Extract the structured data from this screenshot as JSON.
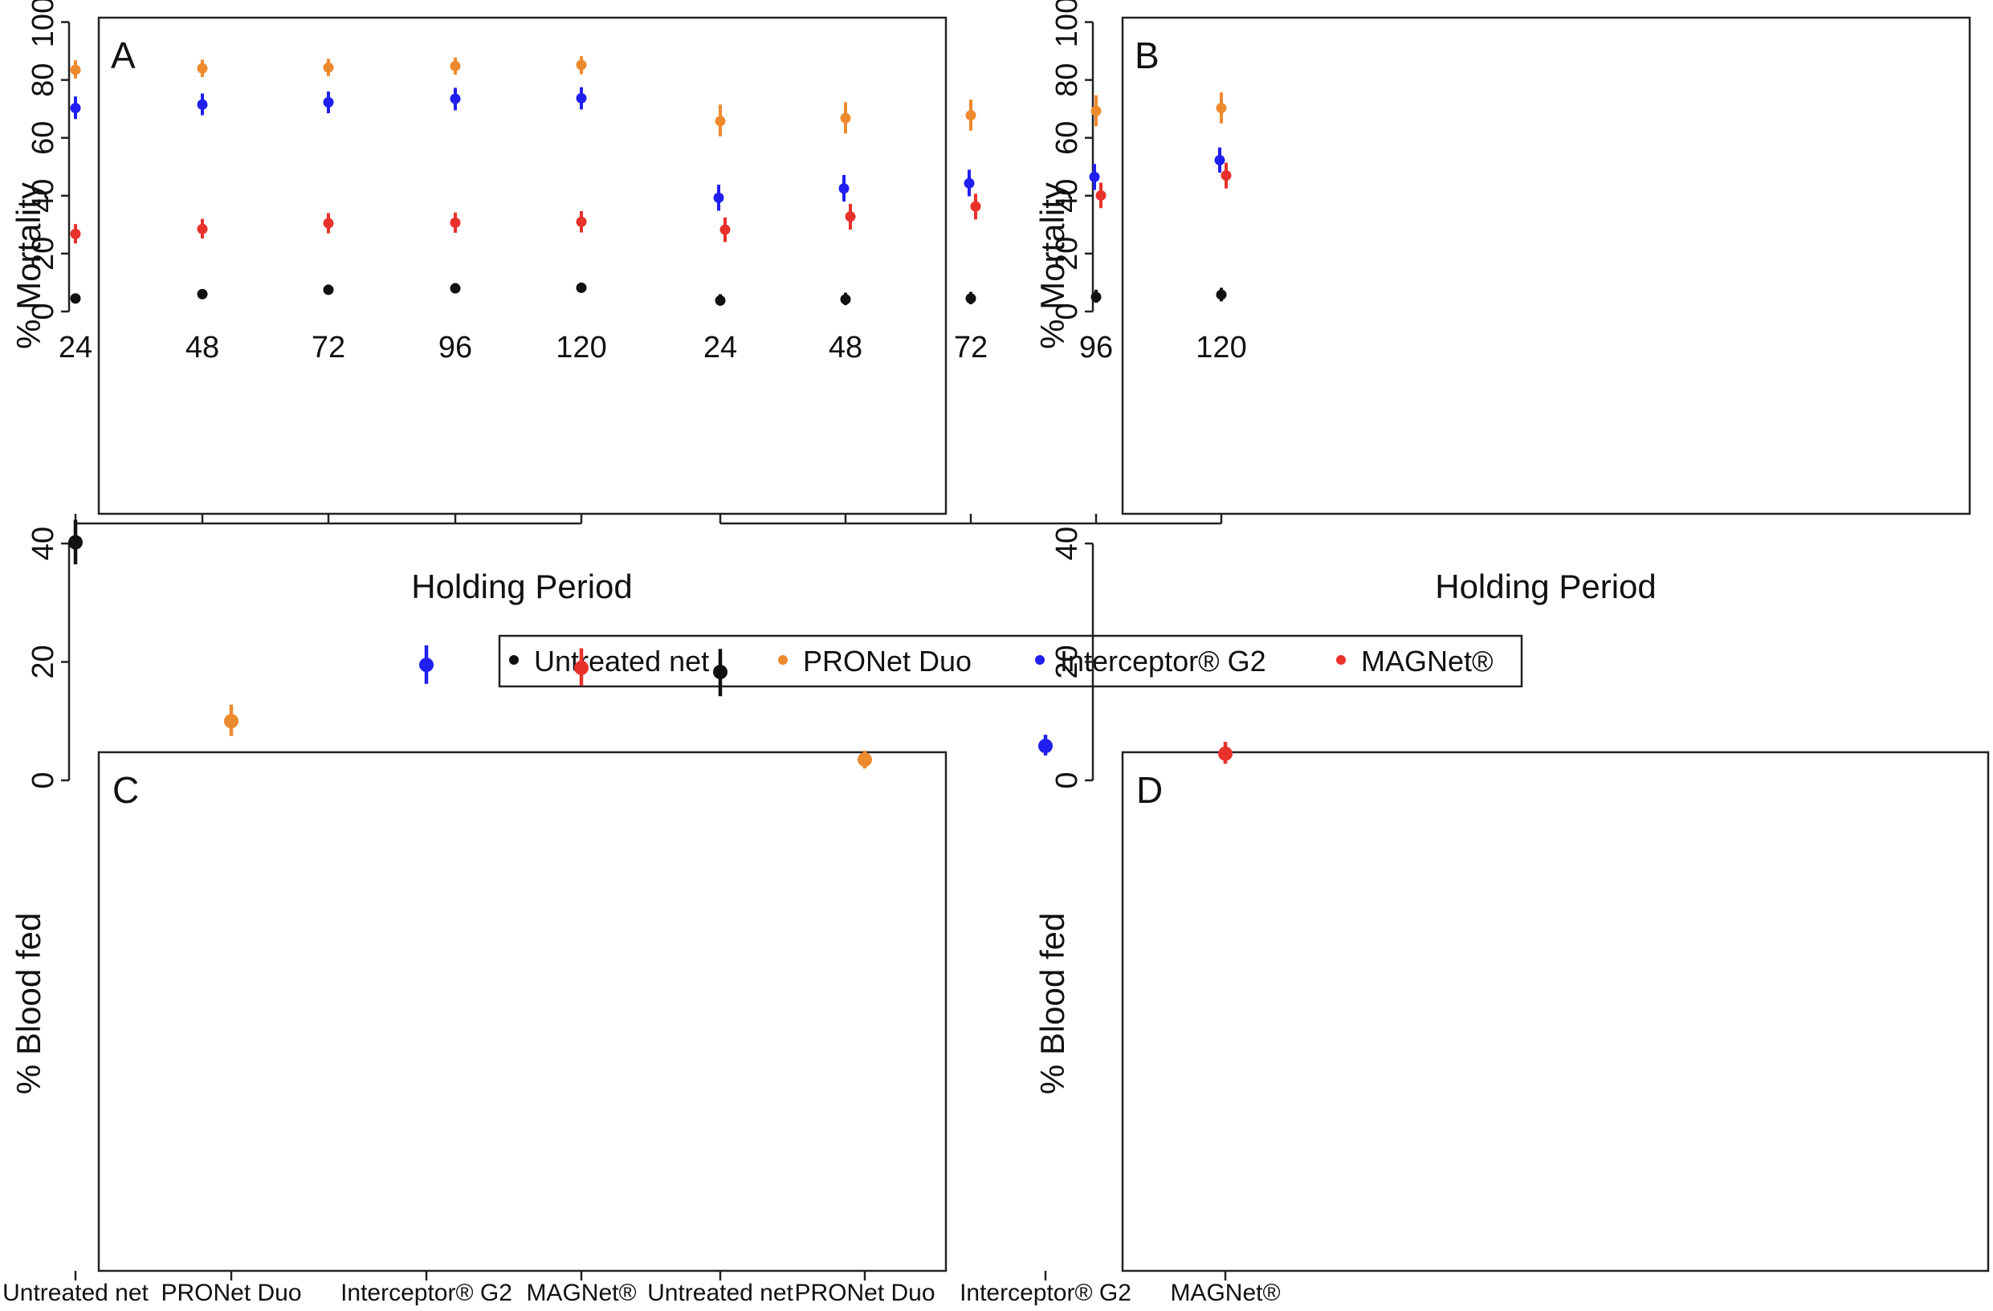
{
  "legend": {
    "items": [
      {
        "label": "Untreated net",
        "color": "#111111"
      },
      {
        "label": "PRONet Duo",
        "color": "#ee8a2e"
      },
      {
        "label": "Interceptor® G2",
        "color": "#1f1ff0"
      },
      {
        "label": "MAGNet®",
        "color": "#e8312b"
      }
    ]
  },
  "chart_data": [
    {
      "panel": "A",
      "type": "scatter",
      "xlabel": "Holding Period",
      "ylabel": "% Mortality",
      "x": [
        24,
        48,
        72,
        96,
        120
      ],
      "xticks": [
        "24",
        "48",
        "72",
        "96",
        "120"
      ],
      "ylim": [
        0,
        100
      ],
      "yticks": [
        0,
        20,
        40,
        60,
        80,
        100
      ],
      "series": [
        {
          "name": "Untreated net",
          "color": "#111111",
          "values": [
            4.5,
            6,
            7.5,
            8,
            8.2
          ],
          "lower": [
            3.5,
            4.8,
            6,
            6.5,
            6.5
          ],
          "upper": [
            5.8,
            7.5,
            9.3,
            9.8,
            10
          ]
        },
        {
          "name": "PRONet Duo",
          "color": "#ee8a2e",
          "values": [
            83.5,
            84,
            84.3,
            84.8,
            85.2
          ],
          "lower": [
            80.5,
            81,
            81.3,
            81.8,
            82
          ],
          "upper": [
            86.8,
            87,
            87.3,
            87.8,
            88.2
          ]
        },
        {
          "name": "Interceptor® G2",
          "color": "#1f1ff0",
          "values": [
            70.3,
            71.5,
            72.3,
            73.5,
            73.7
          ],
          "lower": [
            66.5,
            67.8,
            68.5,
            69.5,
            69.8
          ],
          "upper": [
            74.3,
            75.3,
            76,
            77.3,
            77.5
          ]
        },
        {
          "name": "MAGNet®",
          "color": "#e8312b",
          "values": [
            26.8,
            28.5,
            30.5,
            30.7,
            31
          ],
          "lower": [
            23.5,
            25.2,
            27,
            27.2,
            27.3
          ],
          "upper": [
            30.2,
            32,
            34,
            34.2,
            34.7
          ]
        }
      ]
    },
    {
      "panel": "B",
      "type": "scatter",
      "xlabel": "Holding Period",
      "ylabel": "% Mortality",
      "x": [
        24,
        48,
        72,
        96,
        120
      ],
      "xticks": [
        "24",
        "48",
        "72",
        "96",
        "120"
      ],
      "ylim": [
        0,
        100
      ],
      "yticks": [
        0,
        20,
        40,
        60,
        80,
        100
      ],
      "series": [
        {
          "name": "Untreated net",
          "color": "#111111",
          "values": [
            3.8,
            4.2,
            4.5,
            5,
            5.8
          ],
          "lower": [
            2,
            2.2,
            2.5,
            3,
            3.5
          ],
          "upper": [
            6,
            6.5,
            6.8,
            7.5,
            8.2
          ]
        },
        {
          "name": "PRONet Duo",
          "color": "#ee8a2e",
          "values": [
            65.8,
            66.8,
            67.8,
            69.3,
            70.3
          ],
          "lower": [
            60.5,
            61.5,
            62.5,
            64,
            65
          ],
          "upper": [
            71.5,
            72.3,
            73.2,
            74.7,
            75.7
          ]
        },
        {
          "name": "Interceptor® G2",
          "color": "#1f1ff0",
          "values": [
            39.3,
            42.5,
            44.3,
            46.5,
            52.3
          ],
          "lower": [
            34.8,
            38,
            39.8,
            42,
            48
          ],
          "upper": [
            43.8,
            47.2,
            49,
            51,
            56.7
          ]
        },
        {
          "name": "MAGNet®",
          "color": "#e8312b",
          "values": [
            28.3,
            32.8,
            36.3,
            40.1,
            47
          ],
          "lower": [
            24,
            28.3,
            31.8,
            35.7,
            42.5
          ],
          "upper": [
            32.5,
            37.2,
            40.7,
            44.5,
            51.4
          ]
        }
      ]
    },
    {
      "panel": "C",
      "type": "scatter",
      "xlabel": "",
      "ylabel": "% Blood fed",
      "categories": [
        "Untreated net",
        "PRONet Duo",
        "Interceptor® G2",
        "MAGNet®"
      ],
      "ylim": [
        0,
        52
      ],
      "yticks": [
        0,
        20,
        40
      ],
      "series": [
        {
          "name": "Untreated net",
          "color": "#111111",
          "values": [
            40.2
          ],
          "lower": [
            36.5
          ],
          "upper": [
            44
          ]
        },
        {
          "name": "PRONet Duo",
          "color": "#ee8a2e",
          "values": [
            10
          ],
          "lower": [
            7.5
          ],
          "upper": [
            12.8
          ]
        },
        {
          "name": "Interceptor® G2",
          "color": "#1f1ff0",
          "values": [
            19.5
          ],
          "lower": [
            16.3
          ],
          "upper": [
            22.8
          ]
        },
        {
          "name": "MAGNet®",
          "color": "#e8312b",
          "values": [
            19
          ],
          "lower": [
            16
          ],
          "upper": [
            22.3
          ]
        }
      ]
    },
    {
      "panel": "D",
      "type": "scatter",
      "xlabel": "",
      "ylabel": "% Blood fed",
      "categories": [
        "Untreated net",
        "PRONet Duo",
        "Interceptor® G2",
        "MAGNet®"
      ],
      "ylim": [
        0,
        52
      ],
      "yticks": [
        0,
        20,
        40
      ],
      "series": [
        {
          "name": "Untreated net",
          "color": "#111111",
          "values": [
            18.3
          ],
          "lower": [
            14.2
          ],
          "upper": [
            22.2
          ]
        },
        {
          "name": "PRONet Duo",
          "color": "#ee8a2e",
          "values": [
            3.5
          ],
          "lower": [
            2
          ],
          "upper": [
            5
          ]
        },
        {
          "name": "Interceptor® G2",
          "color": "#1f1ff0",
          "values": [
            5.8
          ],
          "lower": [
            4.2
          ],
          "upper": [
            7.7
          ]
        },
        {
          "name": "MAGNet®",
          "color": "#e8312b",
          "values": [
            4.5
          ],
          "lower": [
            2.8
          ],
          "upper": [
            6.5
          ]
        }
      ]
    }
  ]
}
